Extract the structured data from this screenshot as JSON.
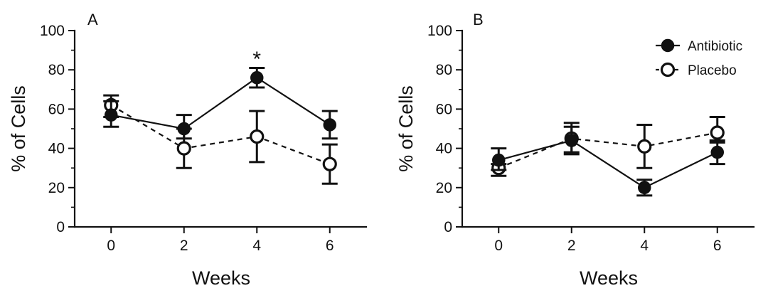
{
  "chart_data": [
    {
      "type": "line",
      "panel_label": "A",
      "xlabel": "Weeks",
      "ylabel": "% of Cells",
      "x": [
        0,
        2,
        4,
        6
      ],
      "xlim": [
        -1,
        7
      ],
      "ylim": [
        0,
        100
      ],
      "xticks": [
        "0",
        "2",
        "4",
        "6"
      ],
      "yticks": [
        "0",
        "20",
        "40",
        "60",
        "80",
        "100"
      ],
      "grid": false,
      "annotations": [
        {
          "text": "*",
          "x": 4,
          "y": 87
        }
      ],
      "series": [
        {
          "name": "Antibiotic",
          "marker": "filled-circle",
          "line": "solid",
          "color": "#111111",
          "values": [
            57,
            50,
            76,
            52
          ],
          "err_low": [
            51,
            45,
            71,
            45
          ],
          "err_high": [
            64,
            57,
            81,
            59
          ]
        },
        {
          "name": "Placebo",
          "marker": "open-circle",
          "line": "dashed",
          "color": "#111111",
          "values": [
            62,
            40,
            46,
            32
          ],
          "err_low": [
            56,
            30,
            33,
            22
          ],
          "err_high": [
            67,
            50,
            59,
            42
          ]
        }
      ]
    },
    {
      "type": "line",
      "panel_label": "B",
      "xlabel": "Weeks",
      "ylabel": "% of Cells",
      "x": [
        0,
        2,
        4,
        6
      ],
      "xlim": [
        -1,
        7
      ],
      "ylim": [
        0,
        100
      ],
      "xticks": [
        "0",
        "2",
        "4",
        "6"
      ],
      "yticks": [
        "0",
        "20",
        "40",
        "60",
        "80",
        "100"
      ],
      "grid": false,
      "legend_position": "top-right",
      "annotations": [],
      "series": [
        {
          "name": "Antibiotic",
          "marker": "filled-circle",
          "line": "solid",
          "color": "#111111",
          "values": [
            34,
            44,
            20,
            38
          ],
          "err_low": [
            29,
            37,
            16,
            32
          ],
          "err_high": [
            40,
            51,
            24,
            44
          ]
        },
        {
          "name": "Placebo",
          "marker": "open-circle",
          "line": "dashed",
          "color": "#111111",
          "values": [
            30,
            45,
            41,
            48
          ],
          "err_low": [
            26,
            38,
            30,
            43
          ],
          "err_high": [
            32,
            53,
            52,
            56
          ]
        }
      ]
    }
  ]
}
